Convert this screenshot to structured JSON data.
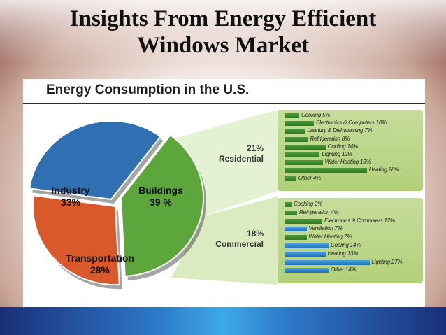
{
  "slide": {
    "title_line1": "Insights From Energy Efficient",
    "title_line2": "Windows Market"
  },
  "colors": {
    "industry": "#2f6fb2",
    "transportation": "#d9592b",
    "buildings": "#5da63c",
    "bar_green": "#3c8a2e",
    "bar_blue": "#2a86cf",
    "box_green": "#bfd98c"
  },
  "chart_data": [
    {
      "type": "pie",
      "title": "Energy Consumption in the U.S.",
      "slices": [
        {
          "name": "Industry",
          "label": "33%",
          "value": 33
        },
        {
          "name": "Transportation",
          "label": "28%",
          "value": 28
        },
        {
          "name": "Buildings",
          "label": "39 %",
          "value": 39
        }
      ]
    },
    {
      "type": "bar",
      "section": "Residential",
      "section_label": "21%",
      "bars": [
        {
          "label": "Cooking 5%",
          "value": 5
        },
        {
          "label": "Electronics & Computers 10%",
          "value": 10
        },
        {
          "label": "Laundry & Dishwashing 7%",
          "value": 7
        },
        {
          "label": "Refrigeration 8%",
          "value": 8
        },
        {
          "label": "Cooling 14%",
          "value": 14
        },
        {
          "label": "Lighting 12%",
          "value": 12
        },
        {
          "label": "Water Heating 13%",
          "value": 13
        },
        {
          "label": "Heating 28%",
          "value": 28
        },
        {
          "label": "Other 4%",
          "value": 4
        }
      ]
    },
    {
      "type": "bar",
      "section": "Commercial",
      "section_label": "18%",
      "bars": [
        {
          "label": "Cooking 2%",
          "value": 2,
          "color": "green"
        },
        {
          "label": "Refrigeration 4%",
          "value": 4,
          "color": "green"
        },
        {
          "label": "Electronics & Computers 12%",
          "value": 12,
          "color": "green"
        },
        {
          "label": "Ventilation 7%",
          "value": 7,
          "color": "blue"
        },
        {
          "label": "Water Heating 7%",
          "value": 7,
          "color": "green"
        },
        {
          "label": "Cooling 14%",
          "value": 14,
          "color": "blue"
        },
        {
          "label": "Heating 13%",
          "value": 13,
          "color": "blue"
        },
        {
          "label": "Lighting 27%",
          "value": 27,
          "color": "blue"
        },
        {
          "label": "Other 14%",
          "value": 14,
          "color": "blue"
        }
      ]
    }
  ]
}
